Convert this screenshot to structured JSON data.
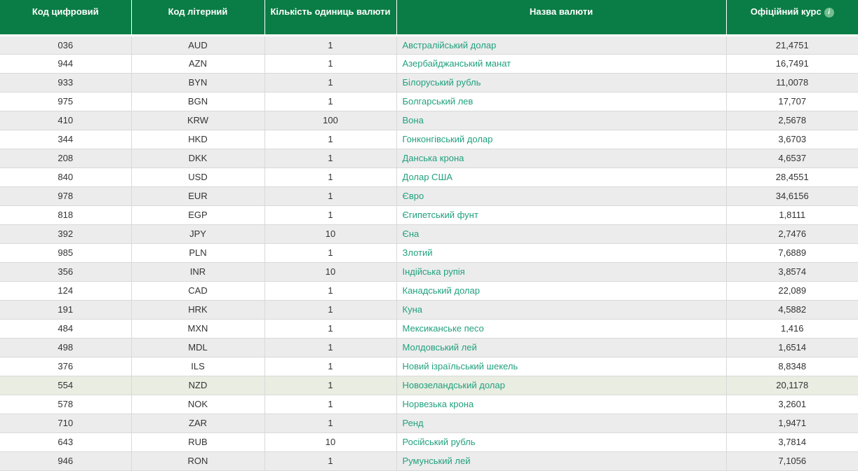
{
  "table": {
    "columns": [
      {
        "label": "Код цифровий"
      },
      {
        "label": "Код літерний"
      },
      {
        "label": "Кількість одиниць валюти"
      },
      {
        "label": "Назва валюти"
      },
      {
        "label": "Офіційний курс"
      }
    ],
    "info_icon_glyph": "i",
    "highlighted_row_index": 18,
    "rows": [
      {
        "num_code": "036",
        "letter_code": "AUD",
        "units": "1",
        "name": "Австралійський долар",
        "rate": "21,4751"
      },
      {
        "num_code": "944",
        "letter_code": "AZN",
        "units": "1",
        "name": "Азербайджанський манат",
        "rate": "16,7491"
      },
      {
        "num_code": "933",
        "letter_code": "BYN",
        "units": "1",
        "name": "Білоруський рубль",
        "rate": "11,0078"
      },
      {
        "num_code": "975",
        "letter_code": "BGN",
        "units": "1",
        "name": "Болгарський лев",
        "rate": "17,707"
      },
      {
        "num_code": "410",
        "letter_code": "KRW",
        "units": "100",
        "name": "Вона",
        "rate": "2,5678"
      },
      {
        "num_code": "344",
        "letter_code": "HKD",
        "units": "1",
        "name": "Гонконгівський долар",
        "rate": "3,6703"
      },
      {
        "num_code": "208",
        "letter_code": "DKK",
        "units": "1",
        "name": "Данська крона",
        "rate": "4,6537"
      },
      {
        "num_code": "840",
        "letter_code": "USD",
        "units": "1",
        "name": "Долар США",
        "rate": "28,4551"
      },
      {
        "num_code": "978",
        "letter_code": "EUR",
        "units": "1",
        "name": "Євро",
        "rate": "34,6156"
      },
      {
        "num_code": "818",
        "letter_code": "EGP",
        "units": "1",
        "name": "Єгипетський фунт",
        "rate": "1,8111"
      },
      {
        "num_code": "392",
        "letter_code": "JPY",
        "units": "10",
        "name": "Єна",
        "rate": "2,7476"
      },
      {
        "num_code": "985",
        "letter_code": "PLN",
        "units": "1",
        "name": "Злотий",
        "rate": "7,6889"
      },
      {
        "num_code": "356",
        "letter_code": "INR",
        "units": "10",
        "name": "Індійська рупія",
        "rate": "3,8574"
      },
      {
        "num_code": "124",
        "letter_code": "CAD",
        "units": "1",
        "name": "Канадський долар",
        "rate": "22,089"
      },
      {
        "num_code": "191",
        "letter_code": "HRK",
        "units": "1",
        "name": "Куна",
        "rate": "4,5882"
      },
      {
        "num_code": "484",
        "letter_code": "MXN",
        "units": "1",
        "name": "Мексиканське песо",
        "rate": "1,416"
      },
      {
        "num_code": "498",
        "letter_code": "MDL",
        "units": "1",
        "name": "Молдовський лей",
        "rate": "1,6514"
      },
      {
        "num_code": "376",
        "letter_code": "ILS",
        "units": "1",
        "name": "Новий ізраїльський шекель",
        "rate": "8,8348"
      },
      {
        "num_code": "554",
        "letter_code": "NZD",
        "units": "1",
        "name": "Новозеландський долар",
        "rate": "20,1178"
      },
      {
        "num_code": "578",
        "letter_code": "NOK",
        "units": "1",
        "name": "Норвезька крона",
        "rate": "3,2601"
      },
      {
        "num_code": "710",
        "letter_code": "ZAR",
        "units": "1",
        "name": "Ренд",
        "rate": "1,9471"
      },
      {
        "num_code": "643",
        "letter_code": "RUB",
        "units": "10",
        "name": "Російський рубль",
        "rate": "3,7814"
      },
      {
        "num_code": "946",
        "letter_code": "RON",
        "units": "1",
        "name": "Румунський лей",
        "rate": "7,1056"
      }
    ]
  },
  "colors": {
    "header_bg": "#0a7c45",
    "header_text": "#ffffff",
    "stripe_bg": "#ececec",
    "row_bg": "#ffffff",
    "highlight_bg": "#e9ede2",
    "link_color": "#21a17e",
    "text_color": "#333333",
    "border_color": "#d9d9d9",
    "info_icon_bg": "#72bd8f"
  }
}
